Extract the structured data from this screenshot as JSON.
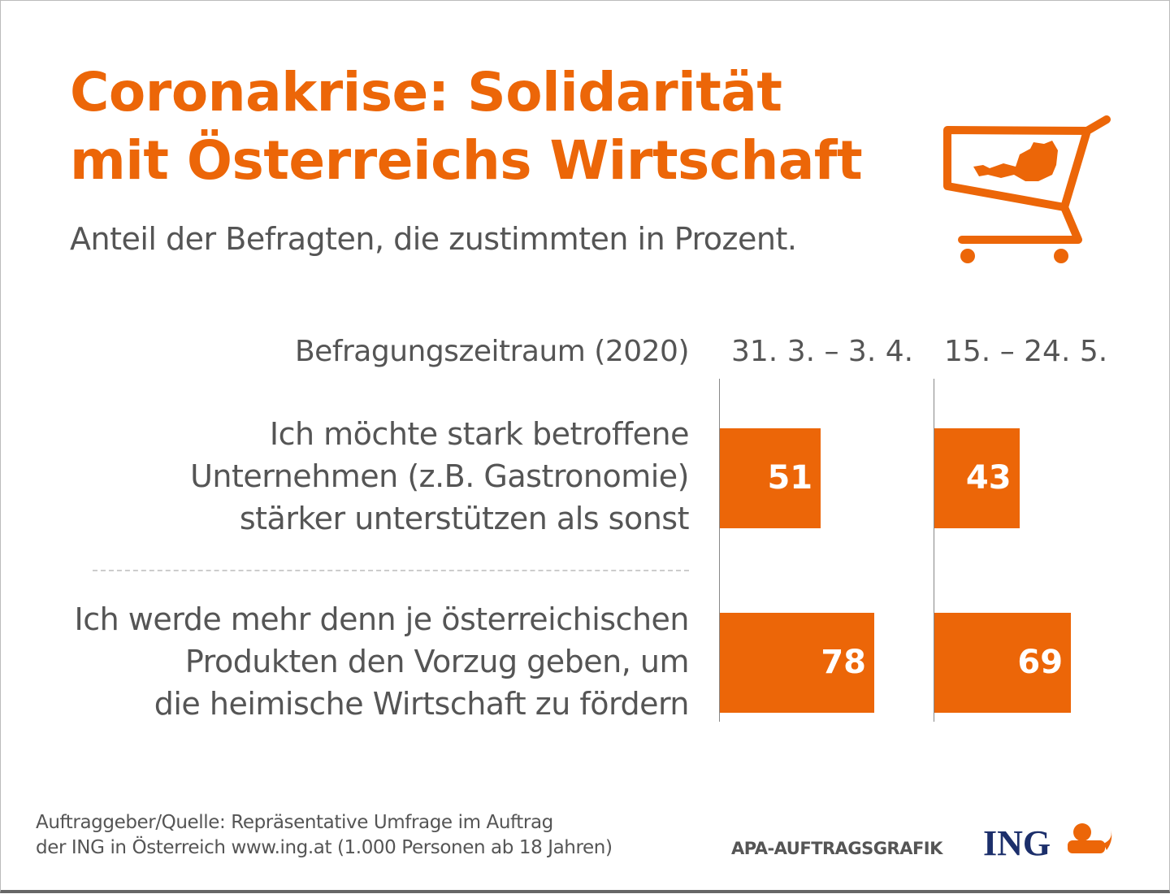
{
  "chart_data": {
    "type": "bar",
    "title": "Coronakrise: Solidarität mit Österreichs Wirtschaft",
    "subtitle": "Anteil der Befragten, die zustimmten in Prozent.",
    "period_label": "Befragungszeitraum (2020)",
    "categories": [
      [
        "Ich möchte stark betroffene",
        "Unternehmen (z.B. Gastronomie)",
        "stärker unterstützen als sonst"
      ],
      [
        "Ich werde mehr denn je österreichischen",
        "Produkten den Vorzug geben, um",
        "die heimische Wirtschaft zu fördern"
      ]
    ],
    "series": [
      {
        "name": "31. 3. – 3. 4.",
        "values": [
          51,
          78
        ]
      },
      {
        "name": "15. – 24. 5.",
        "values": [
          43,
          69
        ]
      }
    ],
    "orientation": "horizontal",
    "unit": "%",
    "grid": false,
    "bar_color": "#EC6608"
  },
  "footer": {
    "source_lines": [
      "Auftraggeber/Quelle: Repräsentative Umfrage im Auftrag",
      "der ING in Österreich www.ing.at (1.000 Personen ab 18 Jahren)"
    ],
    "credit": "APA-AUFTRAGSGRAFIK",
    "logo": "ING"
  },
  "icons": [
    "shopping-cart-austria-icon",
    "ing-lion-icon"
  ],
  "colors": {
    "accent": "#EC6608",
    "text": "#555555",
    "logo": "#1C2F6B"
  }
}
